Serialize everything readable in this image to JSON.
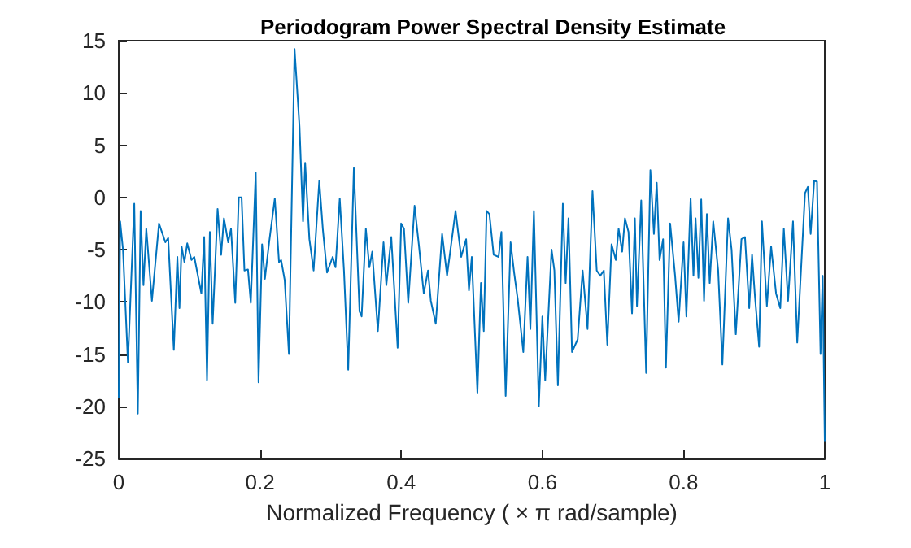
{
  "chart_data": {
    "type": "line",
    "title": "Periodogram Power Spectral Density Estimate",
    "xlabel": "Normalized Frequency ( × π rad/sample)",
    "xlim": [
      0,
      1
    ],
    "xticks": [
      0,
      0.2,
      0.4,
      0.6,
      0.8,
      1
    ],
    "ylim": [
      -25,
      15
    ],
    "yticks": [
      -25,
      -20,
      -15,
      -10,
      -5,
      0,
      5,
      10,
      15
    ],
    "grid": false,
    "marker": "none",
    "line_style": "solid",
    "series": [
      {
        "color": "#0072bd",
        "x": [
          0,
          0.002,
          0.006,
          0.013,
          0.022,
          0.027,
          0.031,
          0.035,
          0.039,
          0.047,
          0.057,
          0.066,
          0.07,
          0.078,
          0.083,
          0.086,
          0.089,
          0.093,
          0.097,
          0.103,
          0.107,
          0.117,
          0.121,
          0.125,
          0.129,
          0.133,
          0.14,
          0.145,
          0.149,
          0.155,
          0.159,
          0.165,
          0.17,
          0.174,
          0.178,
          0.183,
          0.187,
          0.194,
          0.198,
          0.203,
          0.207,
          0.213,
          0.221,
          0.227,
          0.23,
          0.235,
          0.241,
          0.249,
          0.256,
          0.261,
          0.264,
          0.27,
          0.276,
          0.284,
          0.289,
          0.295,
          0.303,
          0.307,
          0.313,
          0.319,
          0.325,
          0.333,
          0.341,
          0.344,
          0.35,
          0.355,
          0.359,
          0.367,
          0.375,
          0.379,
          0.386,
          0.395,
          0.4,
          0.404,
          0.41,
          0.419,
          0.425,
          0.432,
          0.438,
          0.442,
          0.449,
          0.458,
          0.465,
          0.477,
          0.485,
          0.492,
          0.496,
          0.5,
          0.508,
          0.513,
          0.517,
          0.521,
          0.525,
          0.531,
          0.538,
          0.542,
          0.548,
          0.555,
          0.56,
          0.565,
          0.573,
          0.579,
          0.583,
          0.588,
          0.595,
          0.6,
          0.604,
          0.613,
          0.617,
          0.622,
          0.629,
          0.633,
          0.637,
          0.642,
          0.65,
          0.657,
          0.664,
          0.671,
          0.677,
          0.682,
          0.687,
          0.692,
          0.698,
          0.704,
          0.708,
          0.713,
          0.717,
          0.722,
          0.727,
          0.731,
          0.734,
          0.74,
          0.747,
          0.753,
          0.758,
          0.762,
          0.766,
          0.771,
          0.775,
          0.781,
          0.788,
          0.793,
          0.8,
          0.804,
          0.81,
          0.814,
          0.817,
          0.821,
          0.825,
          0.829,
          0.833,
          0.837,
          0.842,
          0.849,
          0.855,
          0.863,
          0.868,
          0.874,
          0.882,
          0.887,
          0.893,
          0.897,
          0.901,
          0.907,
          0.911,
          0.918,
          0.924,
          0.931,
          0.937,
          0.942,
          0.948,
          0.955,
          0.961,
          0.965,
          0.972,
          0.976,
          0.98,
          0.985,
          0.989,
          0.994,
          0.997,
          1
        ],
        "values": [
          -19.2,
          -2.3,
          -5,
          -15.8,
          -0.6,
          -20.7,
          -1.3,
          -8.4,
          -3,
          -9.9,
          -2.5,
          -4.3,
          -3.9,
          -14.6,
          -5.7,
          -10.6,
          -4.7,
          -6.2,
          -4.4,
          -6,
          -5.7,
          -9.2,
          -3.8,
          -17.5,
          -3.3,
          -12.1,
          -1.1,
          -5.5,
          -2,
          -4.3,
          -3,
          -10.1,
          0,
          0,
          -7,
          -6.9,
          -10.1,
          2.4,
          -17.7,
          -4.5,
          -7.8,
          -4.3,
          -0.1,
          -6.2,
          -6,
          -7.9,
          -15,
          14.2,
          6.8,
          -2.3,
          3.3,
          -4,
          -7,
          1.6,
          -3,
          -7.2,
          -5.7,
          -6.7,
          -0.1,
          -7,
          -16.5,
          2.8,
          -10.9,
          -11.4,
          -3,
          -6.7,
          -5.2,
          -12.8,
          -4.3,
          -8.4,
          -3.8,
          -14.4,
          -2.5,
          -3,
          -10.1,
          -0.8,
          -4.5,
          -9.2,
          -7,
          -9.9,
          -12.1,
          -3.5,
          -7.5,
          -1.3,
          -5.7,
          -4,
          -8.9,
          -5.7,
          -18.7,
          -8.2,
          -12.8,
          -1.3,
          -1.6,
          -5.5,
          -5.7,
          -3.3,
          -19,
          -4.3,
          -7.2,
          -9.7,
          -14.8,
          -5.7,
          -12.6,
          -1.3,
          -20,
          -11.4,
          -17.5,
          -5,
          -7,
          -18,
          -0.6,
          -8.2,
          -2,
          -14.8,
          -13.6,
          -7,
          -12.6,
          0.6,
          -7,
          -7.5,
          -7,
          -14.1,
          -4.5,
          -6,
          -3,
          -5.2,
          -2,
          -3.3,
          -11.1,
          -2,
          -10.4,
          -0.3,
          -16.8,
          2.6,
          -3.5,
          1.4,
          -6,
          -4,
          -16.3,
          -2.5,
          -7.5,
          -11.9,
          -4.3,
          -11.4,
          -0.1,
          -7.5,
          -2,
          -7.7,
          -0.2,
          -9.9,
          -1.6,
          -8.2,
          -2.3,
          -7,
          -16,
          -2,
          -5,
          -13.1,
          -4,
          -3.8,
          -10.6,
          -5.5,
          -9.4,
          -14.3,
          -2.3,
          -10.4,
          -4.7,
          -9.2,
          -10.6,
          -3,
          -9.9,
          -2.3,
          -13.9,
          -8.7,
          0.4,
          1,
          -3.5,
          1.6,
          1.5,
          -15,
          -7.5,
          -23.4
        ]
      }
    ]
  }
}
